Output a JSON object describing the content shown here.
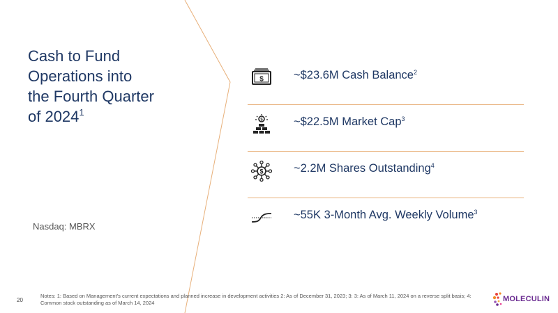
{
  "title": {
    "line1": "Cash to Fund",
    "line2": "Operations into",
    "line3": "the Fourth Quarter",
    "line4": "of 2024",
    "footnote": "1"
  },
  "ticker": "Nasdaq:  MBRX",
  "stats": [
    {
      "icon": "cash-icon",
      "label": "~$23.6M Cash Balance",
      "note": "2"
    },
    {
      "icon": "market-cap-icon",
      "label": "~$22.5M Market Cap",
      "note": "3"
    },
    {
      "icon": "shares-network-icon",
      "label": "~2.2M Shares Outstanding",
      "note": "4"
    },
    {
      "icon": "volume-curve-icon",
      "label": "~55K 3-Month Avg. Weekly Volume",
      "note": "3"
    }
  ],
  "footer": {
    "page_number": "20",
    "notes": "Notes: 1: Based on Management’s current expectations and planned increase in development activities 2: As of December 31, 2023; 3: 3: As of March 11, 2024 on a reverse split basis; 4: Common stock outstanding as of March 14, 2024",
    "logo_text": "MOLECULIN"
  },
  "colors": {
    "title": "#1f3864",
    "accent_line": "#e8b07a",
    "logo": "#6b2c91"
  }
}
